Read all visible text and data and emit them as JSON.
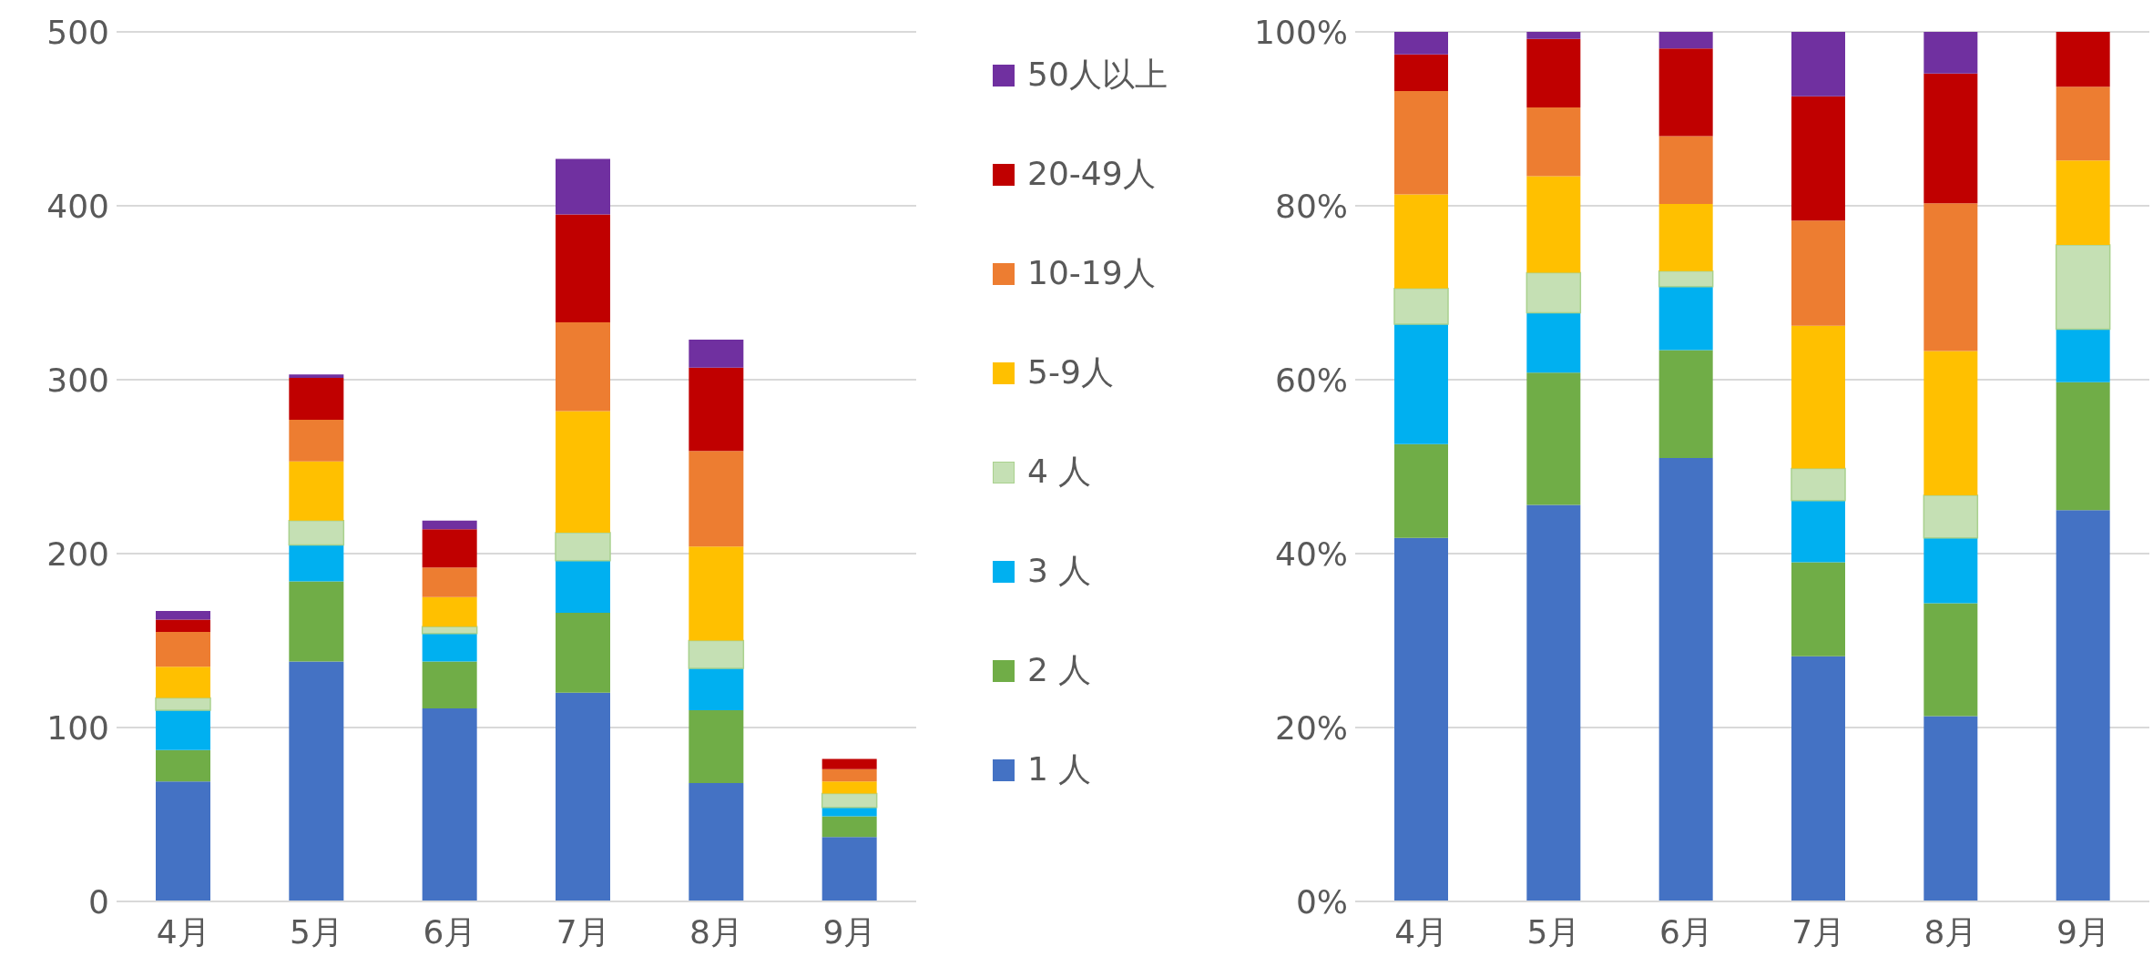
{
  "chart_data": [
    {
      "type": "bar",
      "stacked": true,
      "categories": [
        "4月",
        "5月",
        "6月",
        "7月",
        "8月",
        "9月"
      ],
      "ylim": [
        0,
        500
      ],
      "yticks": [
        0,
        100,
        200,
        300,
        400,
        500
      ],
      "grid": "y",
      "legend": "right",
      "series": [
        {
          "name": "1 人",
          "color": "#4472c4",
          "values": [
            69,
            138,
            111,
            120,
            68,
            37
          ]
        },
        {
          "name": "2 人",
          "color": "#70ad47",
          "values": [
            18,
            46,
            27,
            46,
            42,
            12
          ]
        },
        {
          "name": "3 人",
          "color": "#00b0f0",
          "values": [
            23,
            21,
            16,
            30,
            24,
            5
          ]
        },
        {
          "name": "4 人",
          "color": "#c5e0b4",
          "values": [
            7,
            14,
            4,
            16,
            16,
            8
          ]
        },
        {
          "name": "5-9人",
          "color": "#ffc000",
          "values": [
            18,
            34,
            17,
            70,
            54,
            7
          ]
        },
        {
          "name": "10-19人",
          "color": "#ed7d31",
          "values": [
            20,
            24,
            17,
            51,
            55,
            7
          ]
        },
        {
          "name": "20-49人",
          "color": "#c00000",
          "values": [
            7,
            24,
            22,
            62,
            48,
            6
          ]
        },
        {
          "name": "50人以上",
          "color": "#7030a0",
          "values": [
            5,
            2,
            5,
            32,
            16,
            0
          ]
        }
      ]
    },
    {
      "type": "bar",
      "stacked": true,
      "categories": [
        "4月",
        "5月",
        "6月",
        "7月",
        "8月",
        "9月"
      ],
      "ylim": [
        0,
        100
      ],
      "yticks": [
        {
          "value": 0,
          "label": "0%"
        },
        {
          "value": 20,
          "label": "20%"
        },
        {
          "value": 40,
          "label": "40%"
        },
        {
          "value": 60,
          "label": "60%"
        },
        {
          "value": 80,
          "label": "80%"
        },
        {
          "value": 100,
          "label": "100%"
        }
      ],
      "grid": "y",
      "series": [
        {
          "color": "#4472c4",
          "values": [
            41.8,
            45.6,
            51.0,
            28.2,
            21.3,
            45.0
          ]
        },
        {
          "color": "#70ad47",
          "values": [
            10.8,
            15.2,
            12.4,
            10.8,
            13.0,
            14.7
          ]
        },
        {
          "color": "#00b0f0",
          "values": [
            13.8,
            6.9,
            7.3,
            7.1,
            7.5,
            6.1
          ]
        },
        {
          "color": "#c5e0b4",
          "values": [
            4.1,
            4.6,
            1.8,
            3.7,
            4.9,
            9.7
          ]
        },
        {
          "color": "#ffc000",
          "values": [
            10.8,
            11.1,
            7.7,
            16.4,
            16.6,
            9.7
          ]
        },
        {
          "color": "#ed7d31",
          "values": [
            11.9,
            7.9,
            7.8,
            12.1,
            17.0,
            8.5
          ]
        },
        {
          "color": "#c00000",
          "values": [
            4.2,
            7.9,
            10.1,
            14.3,
            14.9,
            6.3
          ]
        },
        {
          "color": "#7030a0",
          "values": [
            2.6,
            0.8,
            1.9,
            7.4,
            4.8,
            0
          ]
        }
      ]
    }
  ]
}
